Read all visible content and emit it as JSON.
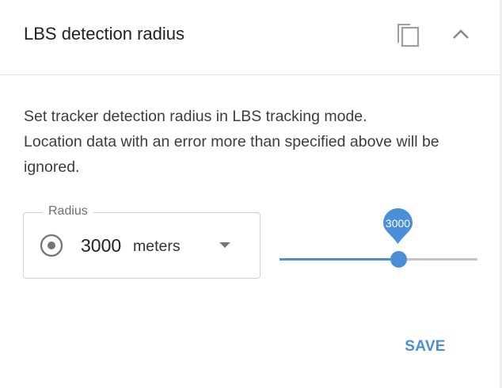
{
  "panel": {
    "title": "LBS detection radius",
    "icons": {
      "copy": "copy-icon",
      "collapse": "chevron-up-icon"
    }
  },
  "description": {
    "line1": "Set tracker detection radius in LBS tracking mode.",
    "line2": "Location data with an error more than specified above will be ignored."
  },
  "radius_field": {
    "label": "Radius",
    "value": "3000",
    "unit": "meters",
    "icons": {
      "leading": "radio-target-icon",
      "dropdown": "dropdown-arrow-icon"
    }
  },
  "slider": {
    "value_label": "3000",
    "fill_fraction": 0.6
  },
  "actions": {
    "save_label": "SAVE"
  },
  "colors": {
    "accent": "#4a8fd6",
    "track": "#c3c3c3"
  }
}
